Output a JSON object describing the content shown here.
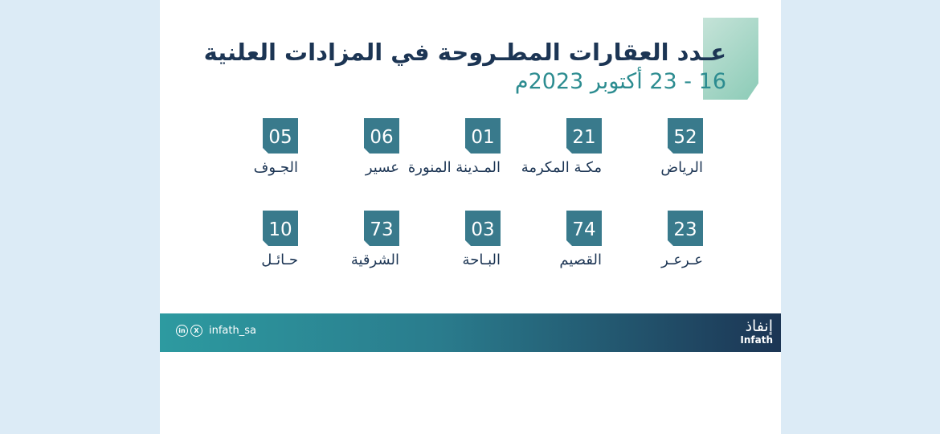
{
  "header": {
    "title": "عـدد العقارات المطـروحة في المزادات العلنية",
    "date_range": "16 - 23 أكتوبر 2023م"
  },
  "accent_colors": {
    "navy": "#1c3554",
    "teal": "#2c8c90",
    "tile": "#397a8c",
    "mint": "#8ccbb7"
  },
  "regions": [
    {
      "count": "52",
      "name": "الرياض"
    },
    {
      "count": "21",
      "name": "مكـة المكرمة"
    },
    {
      "count": "01",
      "name": "المـدينة المنورة"
    },
    {
      "count": "06",
      "name": "عسير"
    },
    {
      "count": "05",
      "name": "الجـوف"
    },
    {
      "count": "23",
      "name": "عـرعـر"
    },
    {
      "count": "74",
      "name": "القصيم"
    },
    {
      "count": "03",
      "name": "البـاحة"
    },
    {
      "count": "73",
      "name": "الشرقية"
    },
    {
      "count": "10",
      "name": "حـائـل"
    }
  ],
  "footer": {
    "social_handle": "infath_sa",
    "social_icons": [
      "linkedin-icon",
      "x-icon"
    ],
    "linkedin_glyph": "in",
    "x_glyph": "X",
    "logo_arabic": "إنفاذ",
    "logo_english": "Infath"
  }
}
